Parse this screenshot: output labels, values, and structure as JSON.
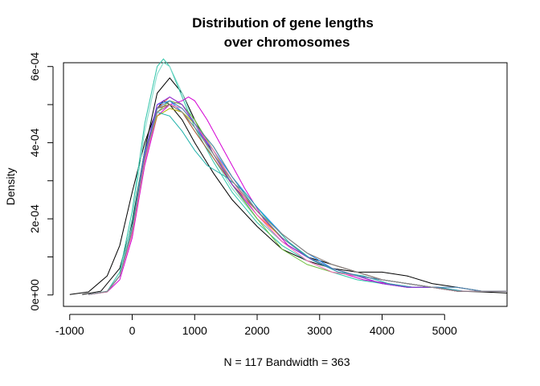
{
  "chart_data": {
    "type": "line",
    "title_line1": "Distribution of gene lengths",
    "title_line2": "over chromosomes",
    "ylabel": "Density",
    "xlabel": "N = 117   Bandwidth = 363",
    "xlim": [
      -1100,
      6000
    ],
    "ylim": [
      -3e-05,
      0.00061
    ],
    "x_ticks": [
      -1000,
      0,
      1000,
      2000,
      3000,
      4000,
      5000
    ],
    "x_tick_labels": [
      "-1000",
      "0",
      "1000",
      "2000",
      "3000",
      "4000",
      "5000"
    ],
    "y_ticks": [
      0,
      0.0001,
      0.0002,
      0.0003,
      0.0004,
      0.0005,
      0.0006
    ],
    "y_tick_labels": [
      "0e+00",
      "",
      "2e-04",
      "",
      "4e-04",
      "",
      "6e-04"
    ],
    "grid": false,
    "legend": "none",
    "series": [
      {
        "color": "#000000",
        "x": [
          -1000,
          -700,
          -400,
          -200,
          0,
          200,
          400,
          500,
          600,
          800,
          1000,
          1300,
          1600,
          2000,
          2400,
          2800,
          3200,
          3600,
          4000,
          4400,
          4800,
          5200,
          5600,
          6000
        ],
        "y": [
          1e-06,
          8e-06,
          5e-05,
          0.00013,
          0.00027,
          0.0004,
          0.00049,
          0.00051,
          0.0005,
          0.00046,
          0.0004,
          0.00032,
          0.00025,
          0.00018,
          0.00012,
          9e-05,
          7e-05,
          6e-05,
          6e-05,
          5e-05,
          3e-05,
          2e-05,
          1e-05,
          1e-05
        ]
      },
      {
        "color": "#000000",
        "x": [
          -800,
          -500,
          -200,
          0,
          200,
          400,
          600,
          800,
          1000,
          1300,
          1600,
          2000,
          2400,
          2800,
          3200,
          3600,
          4000,
          4400,
          4800,
          5200,
          5600,
          6000
        ],
        "y": [
          1e-06,
          1e-05,
          7e-05,
          0.00019,
          0.00038,
          0.00053,
          0.00057,
          0.00053,
          0.00046,
          0.00037,
          0.00029,
          0.0002,
          0.00014,
          0.0001,
          8e-05,
          6e-05,
          4e-05,
          3e-05,
          2e-05,
          1e-05,
          8e-06,
          5e-06
        ]
      },
      {
        "color": "#2ec4a8",
        "x": [
          -700,
          -400,
          -200,
          0,
          200,
          400,
          500,
          600,
          800,
          1000,
          1300,
          1600,
          2000,
          2400,
          2800,
          3200,
          3600,
          4000,
          4400,
          4800,
          5200,
          5600,
          6000
        ],
        "y": [
          1e-06,
          1e-05,
          6e-05,
          0.00022,
          0.00045,
          0.0006,
          0.00062,
          0.0006,
          0.00052,
          0.00044,
          0.00035,
          0.00027,
          0.00019,
          0.00013,
          9e-05,
          6e-05,
          4e-05,
          3e-05,
          2e-05,
          2e-05,
          1e-05,
          1e-05,
          1e-05
        ]
      },
      {
        "color": "#7ad9c9",
        "x": [
          -700,
          -400,
          -200,
          0,
          200,
          400,
          500,
          600,
          800,
          1000,
          1300,
          1600,
          2000,
          2400,
          2800,
          3200,
          3600,
          4000,
          4400,
          4800,
          5200,
          5600,
          6000
        ],
        "y": [
          1e-06,
          1e-05,
          5e-05,
          0.0002,
          0.00043,
          0.00058,
          0.00061,
          0.0006,
          0.00053,
          0.00045,
          0.00036,
          0.00028,
          0.0002,
          0.00014,
          0.0001,
          7e-05,
          5e-05,
          3e-05,
          2e-05,
          2e-05,
          1e-05,
          1e-05,
          1e-05
        ]
      },
      {
        "color": "#d400d4",
        "x": [
          -700,
          -400,
          -200,
          0,
          200,
          400,
          600,
          800,
          900,
          1000,
          1200,
          1500,
          1800,
          2100,
          2500,
          2900,
          3300,
          3700,
          4100,
          4500,
          4900,
          5300,
          5700,
          6000
        ],
        "y": [
          1e-06,
          8e-06,
          4e-05,
          0.00015,
          0.00034,
          0.00047,
          0.0005,
          0.00051,
          0.00052,
          0.00051,
          0.00046,
          0.00037,
          0.00028,
          0.0002,
          0.00013,
          9e-05,
          6e-05,
          4e-05,
          3e-05,
          2e-05,
          2e-05,
          1e-05,
          1e-05,
          1e-05
        ]
      },
      {
        "color": "#ff8c00",
        "x": [
          -700,
          -400,
          -200,
          0,
          200,
          400,
          600,
          800,
          1000,
          1300,
          1600,
          2000,
          2400,
          2800,
          3200,
          3600,
          4000,
          4400,
          4800,
          5200,
          5600,
          6000
        ],
        "y": [
          1e-06,
          9e-06,
          5e-05,
          0.00017,
          0.00036,
          0.00048,
          0.0005,
          0.00048,
          0.00044,
          0.00037,
          0.00029,
          0.00021,
          0.00015,
          0.0001,
          7e-05,
          5e-05,
          4e-05,
          3e-05,
          2e-05,
          1e-05,
          1e-05,
          1e-05
        ]
      },
      {
        "color": "#e05050",
        "x": [
          -700,
          -400,
          -200,
          0,
          200,
          400,
          600,
          800,
          1000,
          1300,
          1600,
          2000,
          2400,
          2800,
          3200,
          3600,
          4000,
          4400,
          4800,
          5200,
          5600,
          6000
        ],
        "y": [
          1e-06,
          9e-06,
          5e-05,
          0.00016,
          0.00035,
          0.00049,
          0.00052,
          0.0005,
          0.00045,
          0.00038,
          0.0003,
          0.00022,
          0.00015,
          0.0001,
          7e-05,
          5e-05,
          3e-05,
          2e-05,
          2e-05,
          1e-05,
          1e-05,
          1e-05
        ]
      },
      {
        "color": "#1e90ff",
        "x": [
          -700,
          -400,
          -200,
          0,
          200,
          400,
          600,
          800,
          1000,
          1300,
          1600,
          2000,
          2400,
          2800,
          3200,
          3600,
          4000,
          4400,
          4800,
          5200,
          5600,
          6000
        ],
        "y": [
          1e-06,
          9e-06,
          5e-05,
          0.00017,
          0.00037,
          0.0005,
          0.00051,
          0.00048,
          0.00044,
          0.00038,
          0.00031,
          0.00023,
          0.00016,
          0.00011,
          7e-05,
          5e-05,
          4e-05,
          3e-05,
          2e-05,
          1e-05,
          1e-05,
          1e-05
        ]
      },
      {
        "color": "#6fbf3f",
        "x": [
          -700,
          -400,
          -200,
          0,
          200,
          400,
          600,
          800,
          1000,
          1300,
          1600,
          2000,
          2400,
          2800,
          3200,
          3600,
          4000,
          4400,
          4800,
          5200,
          5600,
          6000
        ],
        "y": [
          1e-06,
          8e-06,
          5e-05,
          0.00016,
          0.00035,
          0.00048,
          0.00051,
          0.0005,
          0.00046,
          0.00038,
          0.00029,
          0.0002,
          0.00012,
          8e-05,
          6e-05,
          5e-05,
          4e-05,
          3e-05,
          2e-05,
          1e-05,
          1e-05,
          1e-05
        ]
      },
      {
        "color": "#a0522d",
        "x": [
          -700,
          -400,
          -200,
          0,
          200,
          400,
          600,
          800,
          1000,
          1300,
          1600,
          2000,
          2400,
          2800,
          3200,
          3600,
          4000,
          4400,
          4800,
          5200,
          5600,
          6000
        ],
        "y": [
          1e-06,
          9e-06,
          5e-05,
          0.00017,
          0.00036,
          0.00049,
          0.0005,
          0.00048,
          0.00043,
          0.00036,
          0.00029,
          0.00022,
          0.00016,
          0.00011,
          8e-05,
          6e-05,
          4e-05,
          3e-05,
          2e-05,
          1e-05,
          1e-05,
          1e-05
        ]
      },
      {
        "color": "#b0b000",
        "x": [
          -700,
          -400,
          -200,
          0,
          200,
          400,
          600,
          800,
          1000,
          1300,
          1600,
          2000,
          2400,
          2800,
          3200,
          3600,
          4000,
          4400,
          4800,
          5200,
          5600,
          6000
        ],
        "y": [
          1e-06,
          9e-06,
          5e-05,
          0.00017,
          0.00036,
          0.00047,
          0.00049,
          0.00048,
          0.00045,
          0.00039,
          0.00031,
          0.00022,
          0.00015,
          0.0001,
          7e-05,
          5e-05,
          4e-05,
          3e-05,
          2e-05,
          1e-05,
          1e-05,
          1e-05
        ]
      },
      {
        "color": "#20b2aa",
        "x": [
          -700,
          -400,
          -200,
          0,
          200,
          400,
          600,
          800,
          1000,
          1200,
          1500,
          1800,
          2100,
          2500,
          2900,
          3300,
          3700,
          4100,
          4500,
          4900,
          5300,
          5700,
          6000
        ],
        "y": [
          1e-06,
          9e-06,
          5e-05,
          0.00018,
          0.00038,
          0.00048,
          0.00047,
          0.00043,
          0.00038,
          0.00034,
          0.00031,
          0.00027,
          0.00021,
          0.00014,
          9e-05,
          6e-05,
          5e-05,
          3e-05,
          2e-05,
          2e-05,
          1e-05,
          1e-05,
          1e-05
        ]
      },
      {
        "color": "#8a2be2",
        "x": [
          -700,
          -400,
          -200,
          0,
          200,
          400,
          600,
          800,
          1000,
          1300,
          1600,
          2000,
          2400,
          2800,
          3200,
          3600,
          4000,
          4400,
          4800,
          5200,
          5600,
          6000
        ],
        "y": [
          1e-06,
          9e-06,
          5e-05,
          0.00017,
          0.00037,
          0.0005,
          0.00052,
          0.0005,
          0.00045,
          0.00037,
          0.00029,
          0.00021,
          0.00014,
          0.0001,
          7e-05,
          5e-05,
          3e-05,
          2e-05,
          2e-05,
          1e-05,
          1e-05,
          1e-05
        ]
      },
      {
        "color": "#ff69b4",
        "x": [
          -700,
          -400,
          -200,
          0,
          200,
          400,
          600,
          800,
          1000,
          1300,
          1600,
          2000,
          2400,
          2800,
          3200,
          3600,
          4000,
          4400,
          4800,
          5200,
          5600,
          6000
        ],
        "y": [
          1e-06,
          8e-06,
          5e-05,
          0.00016,
          0.00035,
          0.00048,
          0.0005,
          0.00049,
          0.00045,
          0.00038,
          0.0003,
          0.00021,
          0.00014,
          9e-05,
          6e-05,
          5e-05,
          4e-05,
          3e-05,
          2e-05,
          1e-05,
          1e-05,
          1e-05
        ]
      },
      {
        "color": "#4682b4",
        "x": [
          -700,
          -400,
          -200,
          0,
          200,
          400,
          600,
          800,
          1000,
          1300,
          1600,
          2000,
          2400,
          2800,
          3200,
          3600,
          4000,
          4400,
          4800,
          5200,
          5600,
          6000
        ],
        "y": [
          1e-06,
          9e-06,
          5e-05,
          0.00017,
          0.00036,
          0.00049,
          0.00051,
          0.00049,
          0.00045,
          0.00039,
          0.00031,
          0.00022,
          0.00015,
          0.0001,
          7e-05,
          5e-05,
          4e-05,
          3e-05,
          2e-05,
          2e-05,
          1e-05,
          1e-05
        ]
      },
      {
        "color": "#888888",
        "x": [
          -700,
          -400,
          -200,
          0,
          200,
          400,
          600,
          800,
          1000,
          1300,
          1600,
          2000,
          2400,
          2800,
          3200,
          3600,
          4000,
          4400,
          4800,
          5200,
          5600,
          6000
        ],
        "y": [
          1e-06,
          9e-06,
          5e-05,
          0.00017,
          0.00036,
          0.00048,
          0.0005,
          0.00048,
          0.00044,
          0.00037,
          0.0003,
          0.00022,
          0.00016,
          0.00011,
          8e-05,
          6e-05,
          4e-05,
          3e-05,
          2e-05,
          1e-05,
          1e-05,
          1e-05
        ]
      }
    ]
  }
}
